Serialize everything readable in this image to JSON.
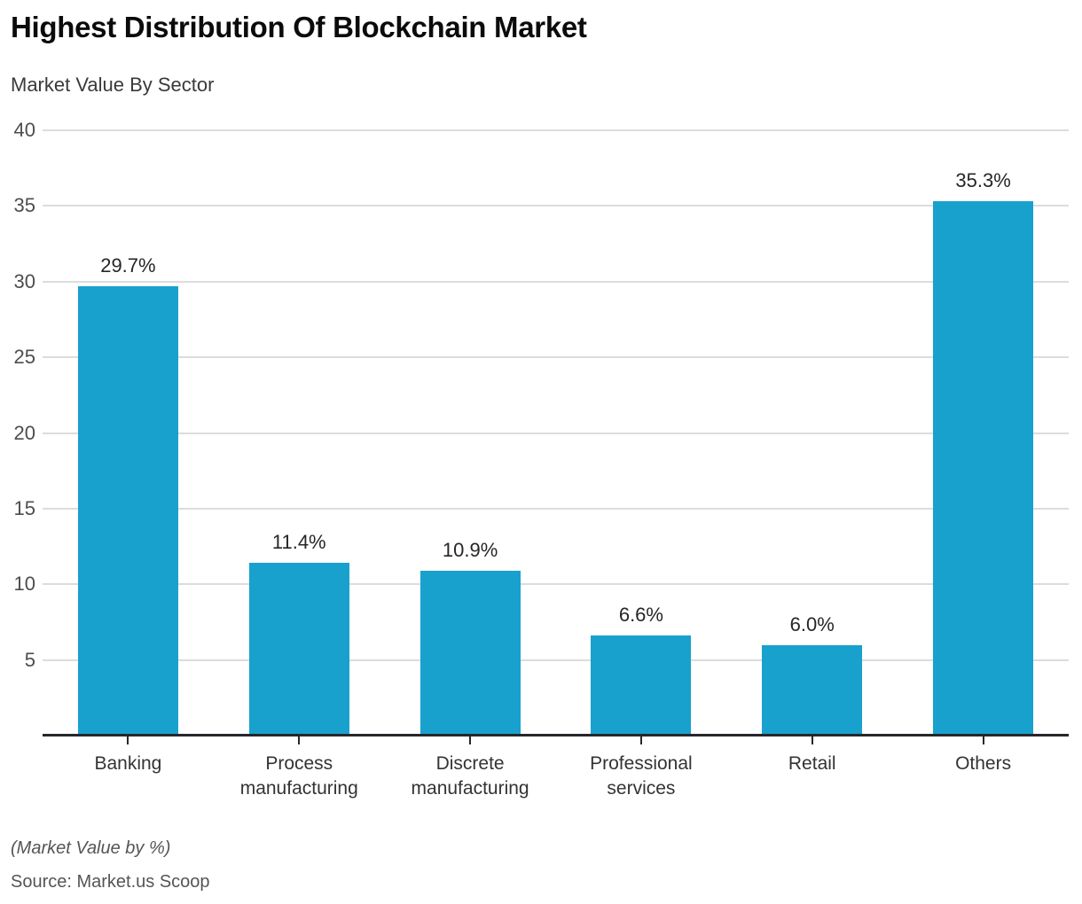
{
  "header": {
    "title": "Highest Distribution Of Blockchain Market",
    "subtitle": "Market Value By Sector"
  },
  "footer": {
    "note": "(Market Value by %)",
    "source": "Source: Market.us Scoop"
  },
  "chart_data": {
    "type": "bar",
    "title": "Highest Distribution Of Blockchain Market",
    "subtitle": "Market Value By Sector",
    "categories": [
      "Banking",
      "Process manufacturing",
      "Discrete manufacturing",
      "Professional services",
      "Retail",
      "Others"
    ],
    "values": [
      29.7,
      11.4,
      10.9,
      6.6,
      6.0,
      35.3
    ],
    "value_labels": [
      "29.7%",
      "11.4%",
      "10.9%",
      "6.6%",
      "6.0%",
      "35.3%"
    ],
    "xlabel": "",
    "ylabel": "(Market Value by %)",
    "ylim": [
      0,
      40
    ],
    "yticks": [
      5,
      10,
      15,
      20,
      25,
      30,
      35,
      40
    ],
    "grid": true,
    "legend": false,
    "bar_color": "#18A1CD",
    "gridline_color": "#dcdcdc",
    "axis_color": "#25272c"
  }
}
